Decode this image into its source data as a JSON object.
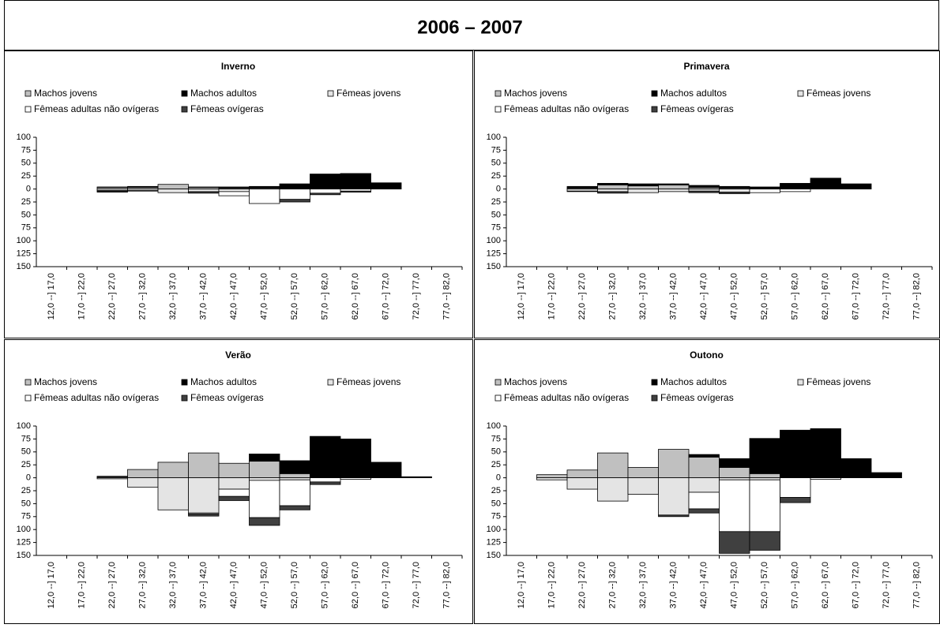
{
  "title": "2006 – 2007",
  "chart_data": [
    {
      "type": "bar",
      "stacked": true,
      "title": "Inverno",
      "categories": [
        "12,0 --] 17,0",
        "17,0 --] 22,0",
        "22,0 --] 27,0",
        "27,0 --] 32,0",
        "32,0 --] 37,0",
        "37,0 --] 42,0",
        "42,0 --] 47,0",
        "47,0 --] 52,0",
        "52,0 --] 57,0",
        "57,0 --] 62,0",
        "62,0 --] 67,0",
        "67,0 --] 72,0",
        "72,0 --] 77,0",
        "77,0 --] 82,0"
      ],
      "series": [
        {
          "name": "Machos jovens",
          "color": "#c0c0c0",
          "values": [
            0,
            0,
            3,
            3,
            9,
            3,
            2,
            2,
            0,
            0,
            0,
            0,
            0,
            0
          ]
        },
        {
          "name": "Machos adultos",
          "color": "#000000",
          "values": [
            0,
            0,
            1,
            2,
            0,
            1,
            2,
            3,
            10,
            29,
            30,
            12,
            0,
            0
          ]
        },
        {
          "name": "Fêmeas jovens",
          "color": "#e4e4e4",
          "values": [
            0,
            0,
            -3,
            -3,
            -7,
            -5,
            -5,
            0,
            0,
            0,
            0,
            0,
            0,
            0
          ]
        },
        {
          "name": "Fêmeas adultas não ovígeras",
          "color": "#ffffff",
          "values": [
            0,
            0,
            -1,
            -1,
            0,
            0,
            -8,
            -28,
            -20,
            -8,
            -4,
            0,
            0,
            0
          ]
        },
        {
          "name": "Fêmeas ovígeras",
          "color": "#404040",
          "values": [
            0,
            0,
            -2,
            0,
            0,
            -3,
            0,
            0,
            -5,
            -3,
            -2,
            0,
            0,
            0
          ]
        }
      ],
      "ylim": [
        -150,
        100
      ],
      "yticks": [
        {
          "value": -150,
          "label": "150"
        },
        {
          "value": -125,
          "label": "125"
        },
        {
          "value": -100,
          "label": "100"
        },
        {
          "value": -75,
          "label": "75"
        },
        {
          "value": -50,
          "label": "50"
        },
        {
          "value": -25,
          "label": "25"
        },
        0,
        25,
        50,
        75,
        100
      ]
    },
    {
      "type": "bar",
      "stacked": true,
      "title": "Primavera",
      "categories": [
        "12,0 --] 17,0",
        "17,0 --] 22,0",
        "22,0 --] 27,0",
        "27,0 --] 32,0",
        "32,0 --] 37,0",
        "37,0 --] 42,0",
        "42,0 --] 47,0",
        "47,0 --] 52,0",
        "52,0 --] 57,0",
        "57,0 --] 62,0",
        "62,0 --] 67,0",
        "67,0 --] 72,0",
        "72,0 --] 77,0",
        "77,0 --] 82,0"
      ],
      "series": [
        {
          "name": "Machos jovens",
          "color": "#c0c0c0",
          "values": [
            0,
            0,
            2,
            8,
            6,
            8,
            3,
            2,
            0,
            0,
            0,
            0,
            0,
            0
          ]
        },
        {
          "name": "Machos adultos",
          "color": "#000000",
          "values": [
            0,
            0,
            3,
            3,
            4,
            2,
            4,
            3,
            4,
            11,
            21,
            10,
            0,
            0
          ]
        },
        {
          "name": "Fêmeas jovens",
          "color": "#e4e4e4",
          "values": [
            0,
            0,
            -4,
            -5,
            -7,
            -5,
            -4,
            -6,
            0,
            0,
            0,
            0,
            0,
            0
          ]
        },
        {
          "name": "Fêmeas adultas não ovígeras",
          "color": "#ffffff",
          "values": [
            0,
            0,
            -1,
            0,
            0,
            0,
            0,
            0,
            -7,
            -5,
            0,
            0,
            0,
            0
          ]
        },
        {
          "name": "Fêmeas ovígeras",
          "color": "#404040",
          "values": [
            0,
            0,
            0,
            -3,
            0,
            0,
            -3,
            -3,
            0,
            0,
            0,
            0,
            0,
            0
          ]
        }
      ],
      "ylim": [
        -150,
        100
      ],
      "yticks": [
        {
          "value": -150,
          "label": "150"
        },
        {
          "value": -125,
          "label": "125"
        },
        {
          "value": -100,
          "label": "100"
        },
        {
          "value": -75,
          "label": "75"
        },
        {
          "value": -50,
          "label": "50"
        },
        {
          "value": -25,
          "label": "25"
        },
        0,
        25,
        50,
        75,
        100
      ]
    },
    {
      "type": "bar",
      "stacked": true,
      "title": "Verão",
      "categories": [
        "12,0 --] 17,0",
        "17,0 --] 22,0",
        "22,0 --] 27,0",
        "27,0 --] 32,0",
        "32,0 --] 37,0",
        "37,0 --] 42,0",
        "42,0 --] 47,0",
        "47,0 --] 52,0",
        "52,0 --] 57,0",
        "57,0 --] 62,0",
        "62,0 --] 67,0",
        "67,0 --] 72,0",
        "72,0 --] 77,0",
        "77,0 --] 82,0"
      ],
      "series": [
        {
          "name": "Machos jovens",
          "color": "#c0c0c0",
          "values": [
            0,
            0,
            2,
            16,
            30,
            48,
            28,
            32,
            8,
            0,
            0,
            0,
            0,
            0
          ]
        },
        {
          "name": "Machos adultos",
          "color": "#000000",
          "values": [
            0,
            0,
            1,
            0,
            0,
            0,
            0,
            14,
            25,
            80,
            75,
            30,
            2,
            0
          ]
        },
        {
          "name": "Fêmeas jovens",
          "color": "#e4e4e4",
          "values": [
            0,
            0,
            -2,
            -18,
            -62,
            -68,
            -22,
            -5,
            -4,
            0,
            0,
            0,
            0,
            0
          ]
        },
        {
          "name": "Fêmeas adultas não ovígeras",
          "color": "#ffffff",
          "values": [
            0,
            0,
            0,
            0,
            0,
            -2,
            -14,
            -72,
            -50,
            -8,
            -3,
            0,
            0,
            0
          ]
        },
        {
          "name": "Fêmeas ovígeras",
          "color": "#404040",
          "values": [
            0,
            0,
            0,
            0,
            0,
            -4,
            -8,
            -15,
            -8,
            -5,
            0,
            0,
            0,
            0
          ]
        }
      ],
      "ylim": [
        -150,
        100
      ],
      "yticks": [
        {
          "value": -150,
          "label": "150"
        },
        {
          "value": -125,
          "label": "125"
        },
        {
          "value": -100,
          "label": "100"
        },
        {
          "value": -75,
          "label": "75"
        },
        {
          "value": -50,
          "label": "50"
        },
        {
          "value": -25,
          "label": "25"
        },
        0,
        25,
        50,
        75,
        100
      ]
    },
    {
      "type": "bar",
      "stacked": true,
      "title": "Outono",
      "categories": [
        "12,0 --] 17,0",
        "17,0 --] 22,0",
        "22,0 --] 27,0",
        "27,0 --] 32,0",
        "32,0 --] 37,0",
        "37,0 --] 42,0",
        "42,0 --] 47,0",
        "47,0 --] 52,0",
        "52,0 --] 57,0",
        "57,0 --] 62,0",
        "62,0 --] 67,0",
        "67,0 --] 72,0",
        "72,0 --] 77,0",
        "77,0 --] 82,0"
      ],
      "series": [
        {
          "name": "Machos jovens",
          "color": "#c0c0c0",
          "values": [
            0,
            6,
            15,
            48,
            20,
            55,
            40,
            20,
            8,
            0,
            0,
            0,
            0,
            0
          ]
        },
        {
          "name": "Machos adultos",
          "color": "#000000",
          "values": [
            0,
            0,
            0,
            0,
            0,
            0,
            5,
            17,
            68,
            92,
            95,
            37,
            10,
            0
          ]
        },
        {
          "name": "Fêmeas jovens",
          "color": "#e4e4e4",
          "values": [
            0,
            -4,
            -22,
            -45,
            -32,
            -72,
            -28,
            -4,
            -4,
            0,
            0,
            0,
            0,
            0
          ]
        },
        {
          "name": "Fêmeas adultas não ovígeras",
          "color": "#ffffff",
          "values": [
            0,
            0,
            0,
            0,
            0,
            0,
            -32,
            -100,
            -100,
            -38,
            -3,
            0,
            0,
            0
          ]
        },
        {
          "name": "Fêmeas ovígeras",
          "color": "#404040",
          "values": [
            0,
            0,
            0,
            0,
            0,
            -3,
            -8,
            -42,
            -36,
            -10,
            0,
            0,
            0,
            0
          ]
        }
      ],
      "ylim": [
        -150,
        100
      ],
      "yticks": [
        {
          "value": -150,
          "label": "150"
        },
        {
          "value": -125,
          "label": "125"
        },
        {
          "value": -100,
          "label": "100"
        },
        {
          "value": -75,
          "label": "75"
        },
        {
          "value": -50,
          "label": "50"
        },
        {
          "value": -25,
          "label": "25"
        },
        0,
        25,
        50,
        75,
        100
      ]
    }
  ]
}
